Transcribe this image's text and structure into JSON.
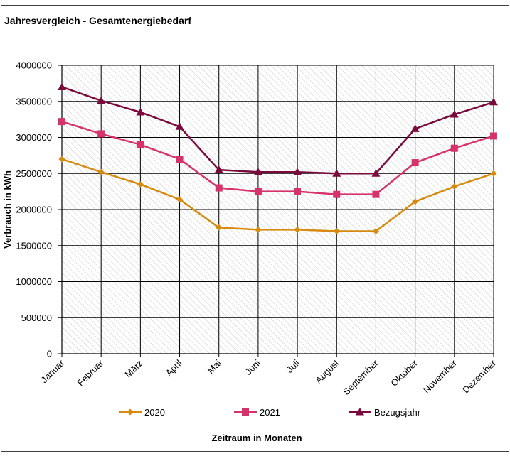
{
  "colors": {
    "series_2020": "#D68A10",
    "series_2021": "#D6336C",
    "series_bezugsjahr": "#7A0A3C",
    "grid": "#000000",
    "hatch": "#c8c8c8",
    "frame": "#000000"
  },
  "chart_data": {
    "type": "line",
    "title": "Jahresvergleich - Gesamtenergiebedarf",
    "xlabel": "Zeitraum in Monaten",
    "ylabel": "Verbrauch in kWh",
    "ylim": [
      0,
      4000000
    ],
    "yticks": [
      0,
      500000,
      1000000,
      1500000,
      2000000,
      2500000,
      3000000,
      3500000,
      4000000
    ],
    "ytick_labels": [
      "0",
      "500000",
      "1000000",
      "1500000",
      "2000000",
      "2500000",
      "3000000",
      "3500000",
      "4000000"
    ],
    "categories": [
      "Januar",
      "Februar",
      "März",
      "April",
      "Mai",
      "Juni",
      "Juli",
      "August",
      "September",
      "Oktober",
      "November",
      "Dezember"
    ],
    "grid": true,
    "legend_position": "bottom",
    "series": [
      {
        "name": "2020",
        "marker": "diamond",
        "values": [
          2700000,
          2520000,
          2350000,
          2140000,
          1750000,
          1720000,
          1720000,
          1700000,
          1700000,
          2110000,
          2320000,
          2500000
        ]
      },
      {
        "name": "2021",
        "marker": "square",
        "values": [
          3220000,
          3050000,
          2900000,
          2700000,
          2300000,
          2250000,
          2250000,
          2210000,
          2210000,
          2650000,
          2850000,
          3020000
        ]
      },
      {
        "name": "Bezugsjahr",
        "marker": "triangle",
        "values": [
          3700000,
          3510000,
          3350000,
          3150000,
          2550000,
          2520000,
          2520000,
          2500000,
          2500000,
          3120000,
          3320000,
          3490000
        ]
      }
    ]
  }
}
